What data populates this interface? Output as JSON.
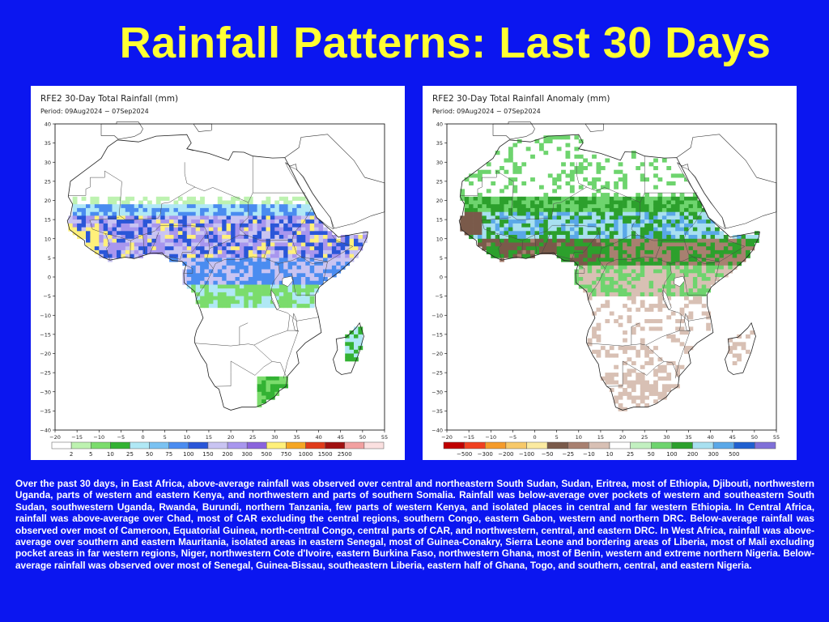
{
  "slide": {
    "title": "Rainfall Patterns: Last 30 Days",
    "description": "Over the past 30 days, in East Africa, above-average rainfall was observed over central and northeastern South Sudan, Sudan, Eritrea, most of Ethiopia, Djibouti, northwestern Uganda, parts of western and eastern Kenya, and northwestern and parts of southern Somalia. Rainfall was below-average over pockets of western and southeastern South Sudan, southwestern Uganda, Rwanda, Burundi, northern Tanzania, few parts of western Kenya, and isolated places in central and far western Ethiopia. In Central Africa, rainfall was above-average over Chad, most of CAR excluding the central regions, southern Congo, eastern Gabon, western and northern DRC. Below-average rainfall was observed over most of Cameroon, Equatorial Guinea, north-central Congo, central parts of CAR, and northwestern, central, and eastern DRC. In West Africa, rainfall was above-average over southern and eastern Mauritania, isolated areas in eastern Senegal, most of Guinea-Conakry, Sierra Leone and bordering areas of Liberia, most of Mali excluding pocket areas in far western regions, Niger, northwestern Cote d'Ivoire, eastern Burkina Faso, northwestern Ghana, most of Benin, western and extreme northern Nigeria. Below-average rainfall was observed over most of Senegal, Guinea-Bissau, southeastern Liberia, eastern half of Ghana, Togo, and southern, central, and eastern Nigeria."
  },
  "axes": {
    "lat_ticks": [
      "40",
      "35",
      "30",
      "25",
      "20",
      "15",
      "10",
      "5",
      "0",
      "−5",
      "−10",
      "−15",
      "−20",
      "−25",
      "−30",
      "−35",
      "−40"
    ],
    "lon_ticks": [
      "−20",
      "−15",
      "−10",
      "−5",
      "0",
      "5",
      "10",
      "15",
      "20",
      "25",
      "30",
      "35",
      "40",
      "45",
      "50",
      "55"
    ]
  },
  "maps": [
    {
      "title": "RFE2 30-Day Total Rainfall (mm)",
      "period": "Period: 09Aug2024 − 07Sep2024",
      "legend": [
        {
          "color": "#ffffff",
          "label": ""
        },
        {
          "color": "#bdf2b0",
          "label": "2"
        },
        {
          "color": "#7bdc6c",
          "label": "5"
        },
        {
          "color": "#33b233",
          "label": "10"
        },
        {
          "color": "#b0e8f5",
          "label": "25"
        },
        {
          "color": "#7ac2f2",
          "label": "50"
        },
        {
          "color": "#4a8cf0",
          "label": "75"
        },
        {
          "color": "#2a56d8",
          "label": "100"
        },
        {
          "color": "#c9c4f2",
          "label": "150"
        },
        {
          "color": "#a896ee",
          "label": "200"
        },
        {
          "color": "#8a63dc",
          "label": "300"
        },
        {
          "color": "#fff07a",
          "label": "500"
        },
        {
          "color": "#f5a623",
          "label": "750"
        },
        {
          "color": "#e03b1a",
          "label": "1000"
        },
        {
          "color": "#a01010",
          "label": "1500"
        },
        {
          "color": "#f2a0a0",
          "label": "2500"
        },
        {
          "color": "#fbe0e0",
          "label": ""
        }
      ]
    },
    {
      "title": "RFE2 30-Day Total Rainfall Anomaly (mm)",
      "period": "Period: 09Aug2024 − 07Sep2024",
      "legend": [
        {
          "color": "#c00000",
          "label": ""
        },
        {
          "color": "#f04020",
          "label": "−500"
        },
        {
          "color": "#f59b2a",
          "label": "−300"
        },
        {
          "color": "#f7c96a",
          "label": "−200"
        },
        {
          "color": "#fbeaa0",
          "label": "−100"
        },
        {
          "color": "#7a5a4a",
          "label": "−50"
        },
        {
          "color": "#a88070",
          "label": "−25"
        },
        {
          "color": "#d8c0b4",
          "label": "−10"
        },
        {
          "color": "#ffffff",
          "label": "10"
        },
        {
          "color": "#c2f0c0",
          "label": "25"
        },
        {
          "color": "#6ed46e",
          "label": "50"
        },
        {
          "color": "#2ca02c",
          "label": "100"
        },
        {
          "color": "#a8e0f0",
          "label": "200"
        },
        {
          "color": "#5aa8e8",
          "label": "300"
        },
        {
          "color": "#2060d0",
          "label": "500"
        },
        {
          "color": "#8070d8",
          "label": ""
        }
      ]
    }
  ]
}
